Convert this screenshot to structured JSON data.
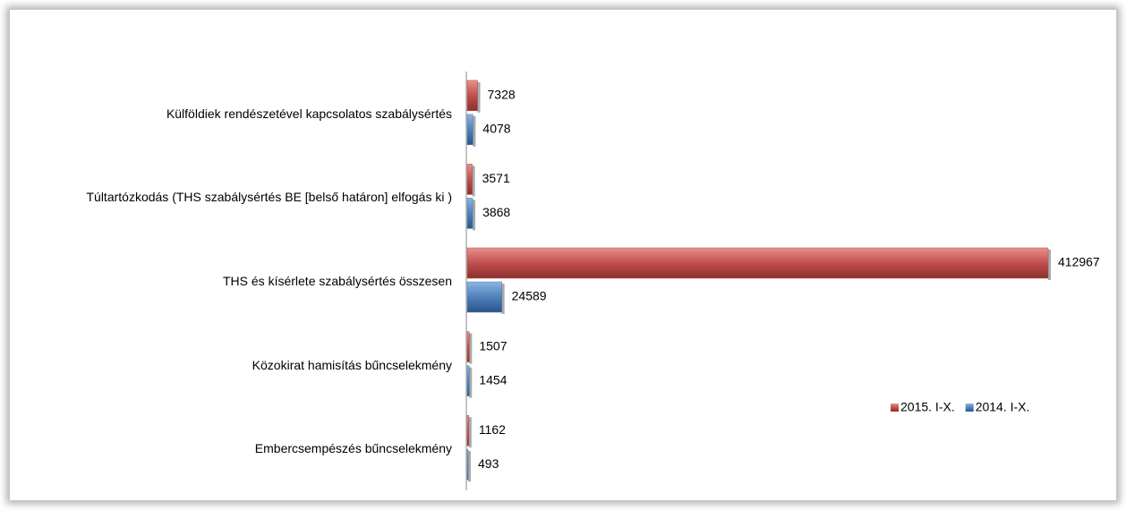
{
  "chart_data": {
    "type": "bar",
    "orientation": "horizontal",
    "categories": [
      "Külföldiek rendészetével kapcsolatos szabálysértés",
      "Túltartózkodás (THS szabálysértés BE [belső határon] elfogás ki )",
      "THS és kísérlete szabálysértés összesen",
      "Közokirat hamisítás bűncselekmény",
      "Embercsempészés bűncselekmény"
    ],
    "series": [
      {
        "name": "2015. I-X.",
        "color": "#c0504d",
        "values": [
          7328,
          3571,
          412967,
          1507,
          1162
        ]
      },
      {
        "name": "2014. I-X.",
        "color": "#4f81bd",
        "values": [
          4078,
          3868,
          24589,
          1454,
          493
        ]
      }
    ],
    "legend": "right"
  }
}
